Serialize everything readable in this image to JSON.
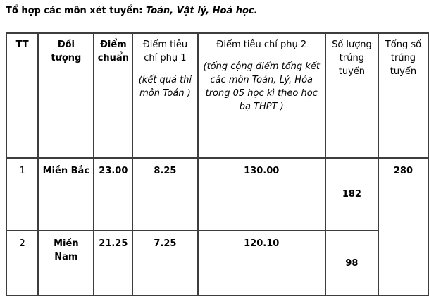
{
  "page": {
    "intro_label": "Tổ hợp các môn xét tuyển:",
    "intro_subjects": "Toán, Vật lý, Hoá học."
  },
  "table": {
    "headers": {
      "tt": "TT",
      "doi_tuong": "Đối tượng",
      "diem_chuan": "Điểm chuẩn",
      "phu1_title": "Điểm tiêu chí phụ 1",
      "phu1_note": "(kết quả thi môn Toán )",
      "phu2_title": "Điểm tiêu chí phụ 2",
      "phu2_note": "(tổng cộng điểm tổng kết các môn Toán, Lý, Hóa trong 05 học kì theo học bạ THPT )",
      "so_luong": "Số lượng trúng tuyển",
      "tong_so": "Tổng số trúng tuyển"
    },
    "rows": [
      {
        "tt": "1",
        "doi_tuong": "Miền Bắc",
        "diem_chuan": "23.00",
        "phu1": "8.25",
        "phu2": "130.00",
        "so_luong": "182"
      },
      {
        "tt": "2",
        "doi_tuong": "Miền Nam",
        "diem_chuan": "21.25",
        "phu1": "7.25",
        "phu2": "120.10",
        "so_luong": "98"
      }
    ],
    "tong_so_value": "280"
  }
}
